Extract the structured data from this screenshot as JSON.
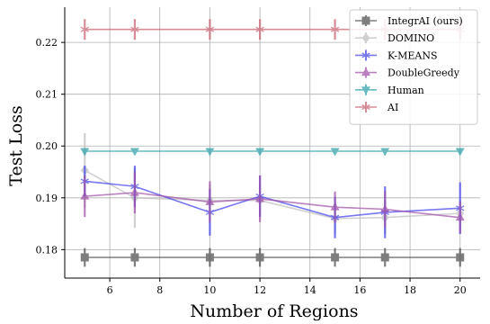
{
  "chart_data": {
    "type": "line",
    "xlabel": "Number of Regions",
    "ylabel": "Test Loss",
    "xlim": [
      4.2,
      20.8
    ],
    "ylim": [
      0.1745,
      0.2268
    ],
    "xticks": [
      6,
      8,
      10,
      12,
      14,
      16,
      18,
      20
    ],
    "yticks": [
      0.18,
      0.19,
      0.2,
      0.21,
      0.22
    ],
    "xtick_labels": [
      "6",
      "8",
      "10",
      "12",
      "14",
      "16",
      "18",
      "20"
    ],
    "ytick_labels": [
      "0.18",
      "0.19",
      "0.20",
      "0.21",
      "0.22"
    ],
    "grid": true,
    "legend_position": "top-right",
    "x": [
      5,
      7,
      10,
      12,
      15,
      17,
      20
    ],
    "series": [
      {
        "name": "IntegrAI (ours)",
        "color": "#4d4d4d",
        "marker": "square",
        "values": [
          0.1785,
          0.1785,
          0.1785,
          0.1785,
          0.1785,
          0.1785,
          0.1785
        ],
        "errors": [
          0.0018,
          0.0018,
          0.0018,
          0.0018,
          0.0018,
          0.0018,
          0.0018
        ]
      },
      {
        "name": "DOMINO",
        "color": "#bfbfbf",
        "marker": "diamond",
        "values": [
          0.1953,
          0.19,
          0.1895,
          0.1895,
          0.186,
          0.1862,
          0.187
        ],
        "errors": [
          0.0072,
          0.0058,
          0.003,
          0.003,
          0.003,
          0.0032,
          0.0025
        ]
      },
      {
        "name": "K-MEANS",
        "color": "#4444ee",
        "marker": "star",
        "values": [
          0.1932,
          0.1922,
          0.1872,
          0.1903,
          0.1862,
          0.1872,
          0.188
        ],
        "errors": [
          0.003,
          0.004,
          0.0045,
          0.004,
          0.004,
          0.005,
          0.005
        ]
      },
      {
        "name": "DoubleGreedy",
        "color": "#a050a8",
        "marker": "triangle-up",
        "values": [
          0.1903,
          0.191,
          0.1892,
          0.1898,
          0.1882,
          0.1878,
          0.1862
        ],
        "errors": [
          0.004,
          0.004,
          0.004,
          0.0045,
          0.003,
          0.0035,
          0.003
        ]
      },
      {
        "name": "Human",
        "color": "#30a0a8",
        "marker": "triangle-down",
        "values": [
          0.199,
          0.199,
          0.199,
          0.199,
          0.199,
          0.199,
          0.199
        ],
        "errors": [
          0.0002,
          0.0002,
          0.0002,
          0.0002,
          0.0002,
          0.0002,
          0.0002
        ]
      },
      {
        "name": "AI",
        "color": "#c86070",
        "marker": "star",
        "values": [
          0.2225,
          0.2225,
          0.2225,
          0.2225,
          0.2225,
          0.2225,
          0.2225
        ],
        "errors": [
          0.002,
          0.002,
          0.002,
          0.002,
          0.002,
          0.002,
          0.002
        ]
      }
    ]
  }
}
